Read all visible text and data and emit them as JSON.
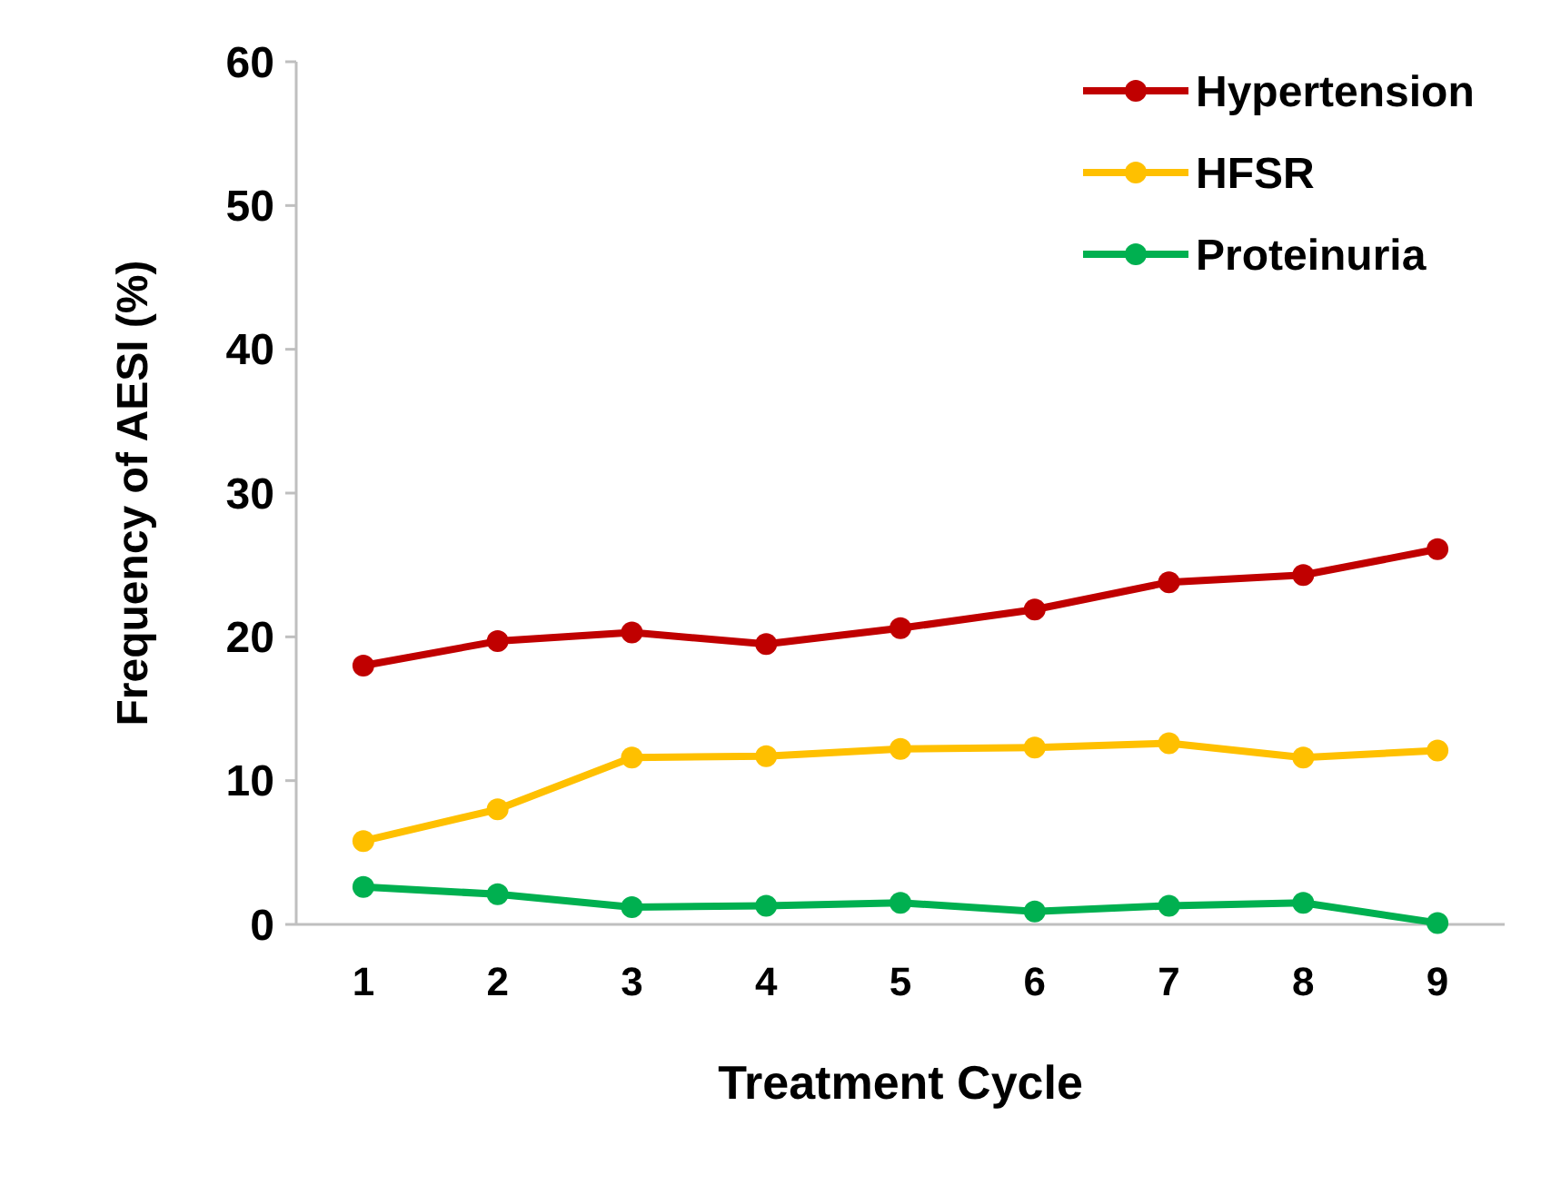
{
  "chart_data": {
    "type": "line",
    "xlabel": "Treatment Cycle",
    "ylabel": "Frequency of AESI (%)",
    "categories": [
      "1",
      "2",
      "3",
      "4",
      "5",
      "6",
      "7",
      "8",
      "9"
    ],
    "series": [
      {
        "name": "Hypertension",
        "color": "#c00000",
        "values": [
          18.0,
          19.7,
          20.3,
          19.5,
          20.6,
          21.9,
          23.8,
          24.3,
          26.1
        ]
      },
      {
        "name": "HFSR",
        "color": "#ffc000",
        "values": [
          5.8,
          8.0,
          11.6,
          11.7,
          12.2,
          12.3,
          12.6,
          11.6,
          12.1
        ]
      },
      {
        "name": "Proteinuria",
        "color": "#00b050",
        "values": [
          2.6,
          2.1,
          1.2,
          1.3,
          1.5,
          0.9,
          1.3,
          1.5,
          0.1
        ]
      }
    ],
    "ylim": [
      0,
      60
    ],
    "yticks": [
      0,
      10,
      20,
      30,
      40,
      50,
      60
    ],
    "grid": false,
    "legend": "top right",
    "marker": "circle",
    "line_style": "solid"
  }
}
